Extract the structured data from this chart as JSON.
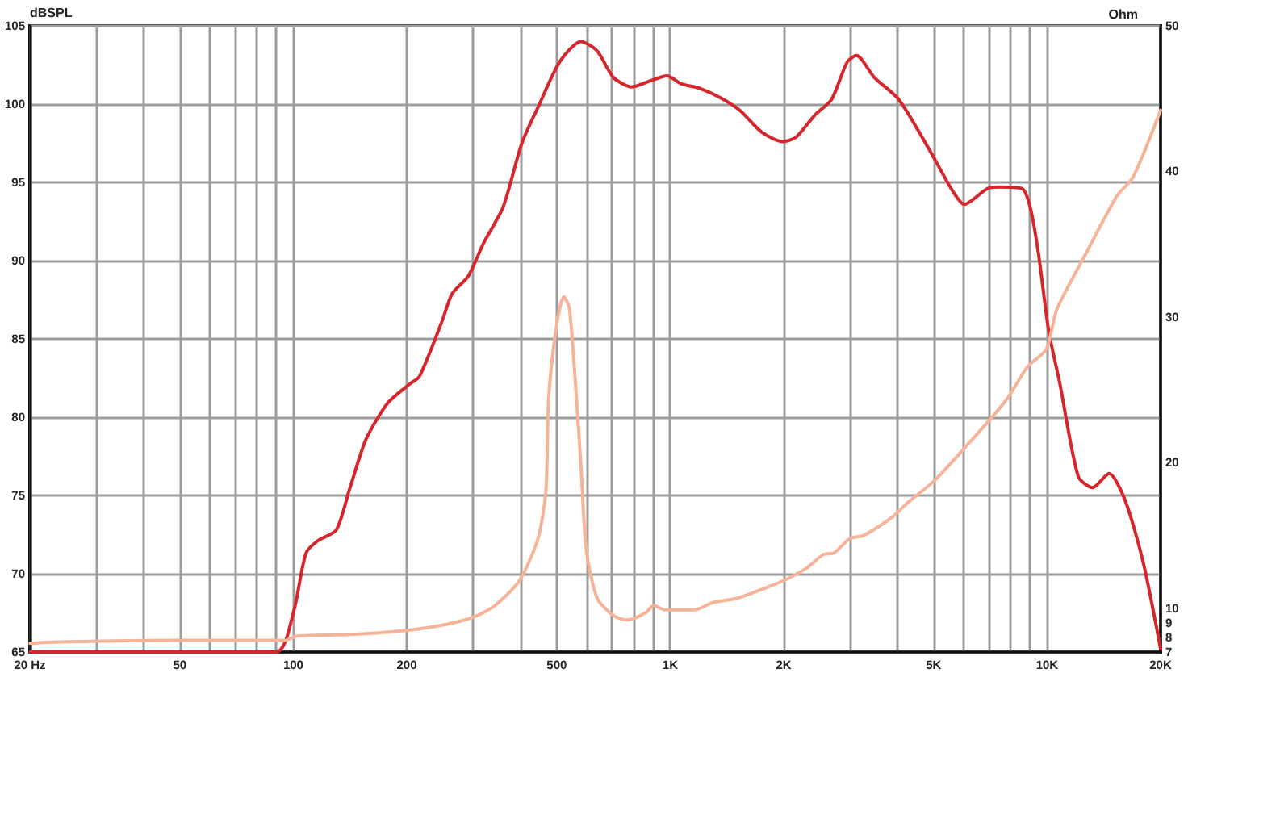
{
  "chart_data": {
    "type": "line",
    "ylabel": "dBSPL",
    "y2label": "Ohm",
    "xlim": [
      20,
      20000
    ],
    "xticks": [
      {
        "value": 20,
        "label": "20 Hz"
      },
      {
        "value": 30,
        "label": null
      },
      {
        "value": 40,
        "label": null
      },
      50,
      {
        "value": 60,
        "label": null
      },
      {
        "value": 70,
        "label": null
      },
      {
        "value": 80,
        "label": null
      },
      {
        "value": 90,
        "label": null
      },
      100,
      200,
      {
        "value": 300,
        "label": null
      },
      {
        "value": 400,
        "label": null
      },
      500,
      {
        "value": 600,
        "label": null
      },
      {
        "value": 700,
        "label": null
      },
      {
        "value": 800,
        "label": null
      },
      {
        "value": 900,
        "label": null
      },
      {
        "value": 1000,
        "label": "1K"
      },
      {
        "value": 2000,
        "label": "2K"
      },
      {
        "value": 3000,
        "label": null
      },
      {
        "value": 4000,
        "label": null
      },
      {
        "value": 5000,
        "label": "5K"
      },
      {
        "value": 6000,
        "label": null
      },
      {
        "value": 7000,
        "label": null
      },
      {
        "value": 8000,
        "label": null
      },
      {
        "value": 9000,
        "label": null
      },
      {
        "value": 10000,
        "label": "10K"
      },
      {
        "value": 20000,
        "label": "20K"
      }
    ],
    "ylim": [
      65,
      105
    ],
    "yticks": [
      65,
      70,
      75,
      80,
      85,
      90,
      95,
      100,
      105
    ],
    "y2lim": [
      7,
      50
    ],
    "y2ticks": [
      7,
      8,
      9,
      10,
      20,
      30,
      40,
      50
    ],
    "log": "x",
    "grid": true,
    "marker": "none",
    "series": [
      {
        "color": "#d7262b",
        "x": [
          20,
          90,
          100,
          108,
          116,
          130,
          141,
          156,
          178,
          203,
          216,
          247,
          264,
          291,
          321,
          360,
          404,
          446,
          509,
          580,
          640,
          707,
          790,
          889,
          981,
          1070,
          1200,
          1360,
          1530,
          1750,
          1990,
          2160,
          2420,
          2680,
          2950,
          3120,
          3480,
          4040,
          4920,
          5600,
          6030,
          6940,
          7410,
          8590,
          9020,
          9480,
          10100,
          10800,
          12100,
          13200,
          14600,
          16100,
          18000,
          20000
        ],
        "values": [
          65,
          65,
          67.5,
          71.3,
          72.1,
          72.8,
          75.4,
          78.6,
          80.9,
          82.1,
          82.6,
          86.0,
          87.9,
          89.0,
          91.2,
          93.4,
          97.5,
          99.8,
          102.7,
          104.0,
          103.4,
          101.7,
          101.1,
          101.5,
          101.8,
          101.3,
          101.0,
          100.4,
          99.6,
          98.2,
          97.6,
          97.9,
          99.3,
          100.3,
          102.7,
          103.1,
          101.7,
          100.3,
          96.9,
          94.5,
          93.6,
          94.6,
          94.7,
          94.6,
          93.4,
          90.5,
          85.5,
          82.2,
          76.2,
          75.5,
          76.4,
          74.7,
          70.7,
          65.2
        ]
      },
      {
        "color": "#f5b499",
        "axis": "y2",
        "x": [
          20,
          25,
          49,
          86,
          95,
          102,
          141,
          202,
          255,
          301,
          343,
          398,
          446,
          468,
          476,
          500,
          522,
          540,
          561,
          580,
          599,
          640,
          707,
          770,
          861,
          904,
          966,
          1160,
          1300,
          1510,
          1830,
          2000,
          2310,
          2550,
          2720,
          3000,
          3260,
          3900,
          4240,
          4990,
          5990,
          7790,
          8880,
          9960,
          10600,
          12700,
          15300,
          16900,
          20000
        ],
        "values": [
          7.6,
          7.7,
          7.8,
          7.8,
          7.8,
          8.1,
          8.2,
          8.5,
          8.9,
          9.4,
          10.2,
          11.9,
          14.8,
          18.1,
          24.5,
          29.5,
          31.4,
          30.6,
          25.3,
          19.7,
          14.0,
          10.7,
          9.5,
          9.2,
          9.7,
          10.2,
          9.9,
          9.9,
          10.4,
          10.7,
          11.5,
          11.9,
          12.8,
          13.7,
          13.8,
          14.8,
          15.0,
          16.3,
          17.2,
          18.7,
          20.9,
          24.3,
          26.6,
          27.8,
          30.5,
          34.4,
          38.3,
          39.6,
          44.2
        ]
      }
    ]
  }
}
